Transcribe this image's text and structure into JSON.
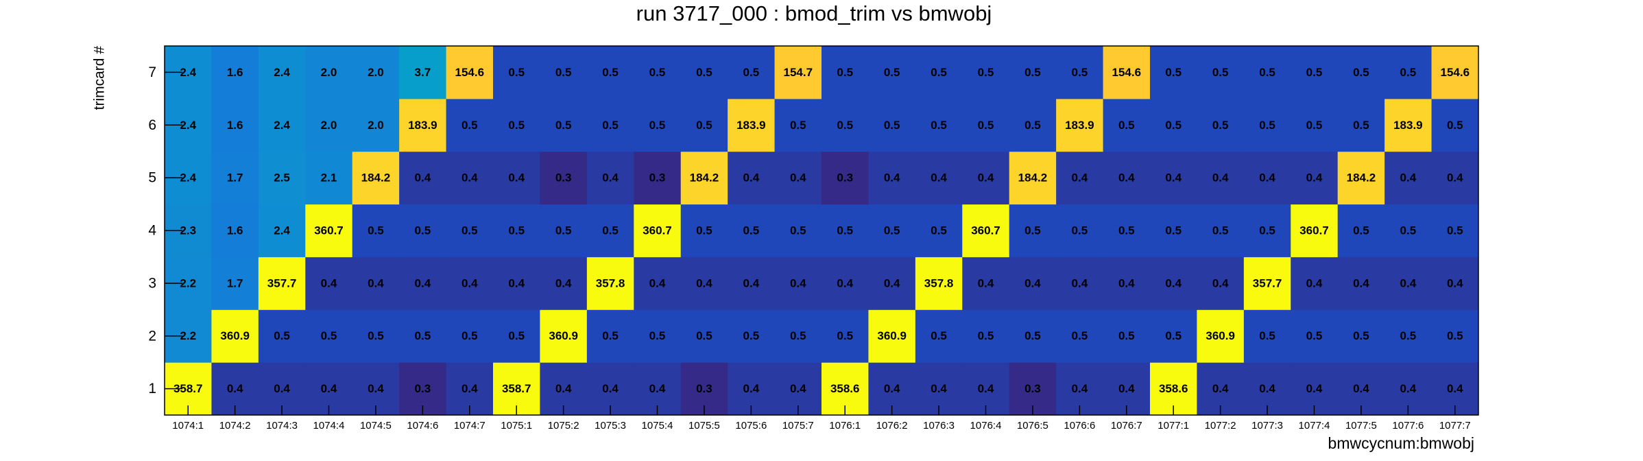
{
  "chart_data": {
    "type": "heatmap",
    "title": "run 3717_000 : bmod_trim vs bmwobj",
    "x_label": "bmwcycnum:bmwobj",
    "y_label": "trimcard #",
    "categories": [
      "1074:1",
      "1074:2",
      "1074:3",
      "1074:4",
      "1074:5",
      "1074:6",
      "1074:7",
      "1075:1",
      "1075:2",
      "1075:3",
      "1075:4",
      "1075:5",
      "1075:6",
      "1075:7",
      "1076:1",
      "1076:2",
      "1076:3",
      "1076:4",
      "1076:5",
      "1076:6",
      "1076:7",
      "1077:1",
      "1077:2",
      "1077:3",
      "1077:4",
      "1077:5",
      "1077:6",
      "1077:7"
    ],
    "ylim": [
      0.5,
      7.5
    ],
    "yticks": [
      1,
      2,
      3,
      4,
      5,
      6,
      7
    ],
    "log_color_scale": true,
    "palette": [
      "#352a87",
      "#0f5cdd",
      "#1481d6",
      "#06a4ca",
      "#2eb7a4",
      "#87bf77",
      "#d1bb59",
      "#fec832",
      "#f9fb0e"
    ],
    "values": [
      [
        358.7,
        0.4,
        0.4,
        0.4,
        0.4,
        0.3,
        0.4,
        358.7,
        0.4,
        0.4,
        0.4,
        0.3,
        0.4,
        0.4,
        358.6,
        0.4,
        0.4,
        0.4,
        0.3,
        0.4,
        0.4,
        358.6,
        0.4,
        0.4,
        0.4,
        0.4,
        0.4,
        0.4
      ],
      [
        2.2,
        360.9,
        0.5,
        0.5,
        0.5,
        0.5,
        0.5,
        0.5,
        360.9,
        0.5,
        0.5,
        0.5,
        0.5,
        0.5,
        0.5,
        360.9,
        0.5,
        0.5,
        0.5,
        0.5,
        0.5,
        0.5,
        360.9,
        0.5,
        0.5,
        0.5,
        0.5,
        0.5
      ],
      [
        2.2,
        1.7,
        357.7,
        0.4,
        0.4,
        0.4,
        0.4,
        0.4,
        0.4,
        357.8,
        0.4,
        0.4,
        0.4,
        0.4,
        0.4,
        0.4,
        357.8,
        0.4,
        0.4,
        0.4,
        0.4,
        0.4,
        0.4,
        357.7,
        0.4,
        0.4,
        0.4,
        0.4
      ],
      [
        2.3,
        1.6,
        2.4,
        360.7,
        0.5,
        0.5,
        0.5,
        0.5,
        0.5,
        0.5,
        360.7,
        0.5,
        0.5,
        0.5,
        0.5,
        0.5,
        0.5,
        360.7,
        0.5,
        0.5,
        0.5,
        0.5,
        0.5,
        0.5,
        360.7,
        0.5,
        0.5,
        0.5
      ],
      [
        2.4,
        1.7,
        2.5,
        2.1,
        184.2,
        0.4,
        0.4,
        0.4,
        0.3,
        0.4,
        0.3,
        184.2,
        0.4,
        0.4,
        0.3,
        0.4,
        0.4,
        0.4,
        184.2,
        0.4,
        0.4,
        0.4,
        0.4,
        0.4,
        0.4,
        184.2,
        0.4,
        0.4
      ],
      [
        2.4,
        1.6,
        2.4,
        2.0,
        2.0,
        183.9,
        0.5,
        0.5,
        0.5,
        0.5,
        0.5,
        0.5,
        183.9,
        0.5,
        0.5,
        0.5,
        0.5,
        0.5,
        0.5,
        183.9,
        0.5,
        0.5,
        0.5,
        0.5,
        0.5,
        0.5,
        183.9,
        0.5
      ],
      [
        2.4,
        1.6,
        2.4,
        2.0,
        2.0,
        3.7,
        154.6,
        0.5,
        0.5,
        0.5,
        0.5,
        0.5,
        0.5,
        154.7,
        0.5,
        0.5,
        0.5,
        0.5,
        0.5,
        0.5,
        154.6,
        0.5,
        0.5,
        0.5,
        0.5,
        0.5,
        0.5,
        154.6
      ]
    ],
    "value_labels": [
      [
        "358.7",
        "0.4",
        "0.4",
        "0.4",
        "0.4",
        "0.3",
        "0.4",
        "358.7",
        "0.4",
        "0.4",
        "0.4",
        "0.3",
        "0.4",
        "0.4",
        "358.6",
        "0.4",
        "0.4",
        "0.4",
        "0.3",
        "0.4",
        "0.4",
        "358.6",
        "0.4",
        "0.4",
        "0.4",
        "0.4",
        "0.4",
        "0.4"
      ],
      [
        "2.2",
        "360.9",
        "0.5",
        "0.5",
        "0.5",
        "0.5",
        "0.5",
        "0.5",
        "360.9",
        "0.5",
        "0.5",
        "0.5",
        "0.5",
        "0.5",
        "0.5",
        "360.9",
        "0.5",
        "0.5",
        "0.5",
        "0.5",
        "0.5",
        "0.5",
        "360.9",
        "0.5",
        "0.5",
        "0.5",
        "0.5",
        "0.5"
      ],
      [
        "2.2",
        "1.7",
        "357.7",
        "0.4",
        "0.4",
        "0.4",
        "0.4",
        "0.4",
        "0.4",
        "357.8",
        "0.4",
        "0.4",
        "0.4",
        "0.4",
        "0.4",
        "0.4",
        "357.8",
        "0.4",
        "0.4",
        "0.4",
        "0.4",
        "0.4",
        "0.4",
        "357.7",
        "0.4",
        "0.4",
        "0.4",
        "0.4"
      ],
      [
        "2.3",
        "1.6",
        "2.4",
        "360.7",
        "0.5",
        "0.5",
        "0.5",
        "0.5",
        "0.5",
        "0.5",
        "360.7",
        "0.5",
        "0.5",
        "0.5",
        "0.5",
        "0.5",
        "0.5",
        "360.7",
        "0.5",
        "0.5",
        "0.5",
        "0.5",
        "0.5",
        "0.5",
        "360.7",
        "0.5",
        "0.5",
        "0.5"
      ],
      [
        "2.4",
        "1.7",
        "2.5",
        "2.1",
        "184.2",
        "0.4",
        "0.4",
        "0.4",
        "0.3",
        "0.4",
        "0.3",
        "184.2",
        "0.4",
        "0.4",
        "0.3",
        "0.4",
        "0.4",
        "0.4",
        "184.2",
        "0.4",
        "0.4",
        "0.4",
        "0.4",
        "0.4",
        "0.4",
        "184.2",
        "0.4",
        "0.4"
      ],
      [
        "2.4",
        "1.6",
        "2.4",
        "2.0",
        "2.0",
        "183.9",
        "0.5",
        "0.5",
        "0.5",
        "0.5",
        "0.5",
        "0.5",
        "183.9",
        "0.5",
        "0.5",
        "0.5",
        "0.5",
        "0.5",
        "0.5",
        "183.9",
        "0.5",
        "0.5",
        "0.5",
        "0.5",
        "0.5",
        "0.5",
        "183.9",
        "0.5"
      ],
      [
        "2.4",
        "1.6",
        "2.4",
        "2.0",
        "2.0",
        "3.7",
        "154.6",
        "0.5",
        "0.5",
        "0.5",
        "0.5",
        "0.5",
        "0.5",
        "154.7",
        "0.5",
        "0.5",
        "0.5",
        "0.5",
        "0.5",
        "0.5",
        "154.6",
        "0.5",
        "0.5",
        "0.5",
        "0.5",
        "0.5",
        "0.5",
        "154.6"
      ]
    ]
  }
}
